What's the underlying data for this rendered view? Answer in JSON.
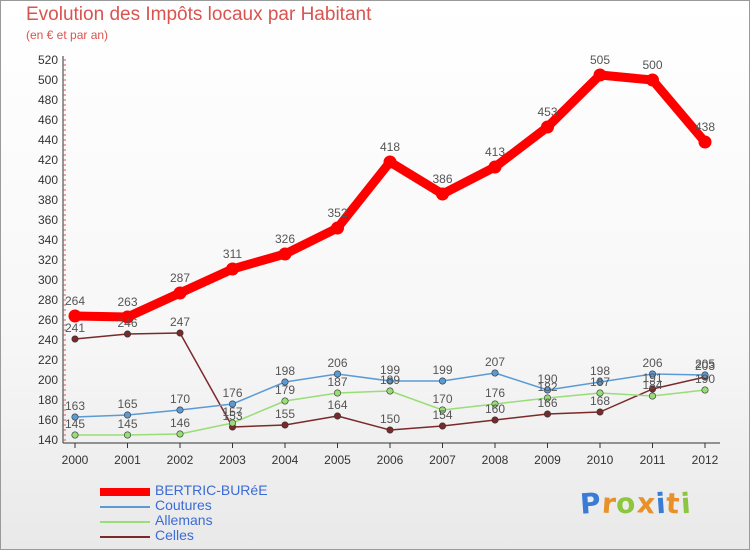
{
  "header": {
    "title": "Evolution des Impôts locaux par Habitant",
    "subtitle": "(en € et par an)"
  },
  "logo": {
    "text": "Proxiti",
    "colors": [
      "#3a7bd5",
      "#e8912b",
      "#8cc63f",
      "#e8912b",
      "#3a7bd5",
      "#e8912b",
      "#8cc63f"
    ]
  },
  "chart_data": {
    "type": "line",
    "x": [
      "2000",
      "2001",
      "2002",
      "2003",
      "2004",
      "2005",
      "2006",
      "2007",
      "2008",
      "2009",
      "2010",
      "2011",
      "2012"
    ],
    "ylim": [
      140,
      520
    ],
    "yticks": [
      140,
      160,
      180,
      200,
      220,
      240,
      260,
      280,
      300,
      320,
      340,
      360,
      380,
      400,
      420,
      440,
      460,
      480,
      500,
      520
    ],
    "grid": false,
    "legend_position": "bottom-left",
    "series": [
      {
        "name": "BERTRIC-BURéE",
        "color": "#ff0000",
        "values": [
          264,
          263,
          287,
          311,
          326,
          352,
          418,
          386,
          413,
          453,
          505,
          500,
          438
        ]
      },
      {
        "name": "Coutures",
        "color": "#5b9bd5",
        "values": [
          163,
          165,
          170,
          176,
          198,
          206,
          199,
          199,
          207,
          190,
          198,
          206,
          205
        ]
      },
      {
        "name": "Allemans",
        "color": "#99dd77",
        "values": [
          145,
          145,
          146,
          157,
          179,
          187,
          189,
          170,
          176,
          182,
          187,
          184,
          190
        ]
      },
      {
        "name": "Celles",
        "color": "#7a2a2a",
        "values": [
          241,
          246,
          247,
          153,
          155,
          164,
          150,
          154,
          160,
          166,
          168,
          191,
          203
        ]
      }
    ]
  }
}
